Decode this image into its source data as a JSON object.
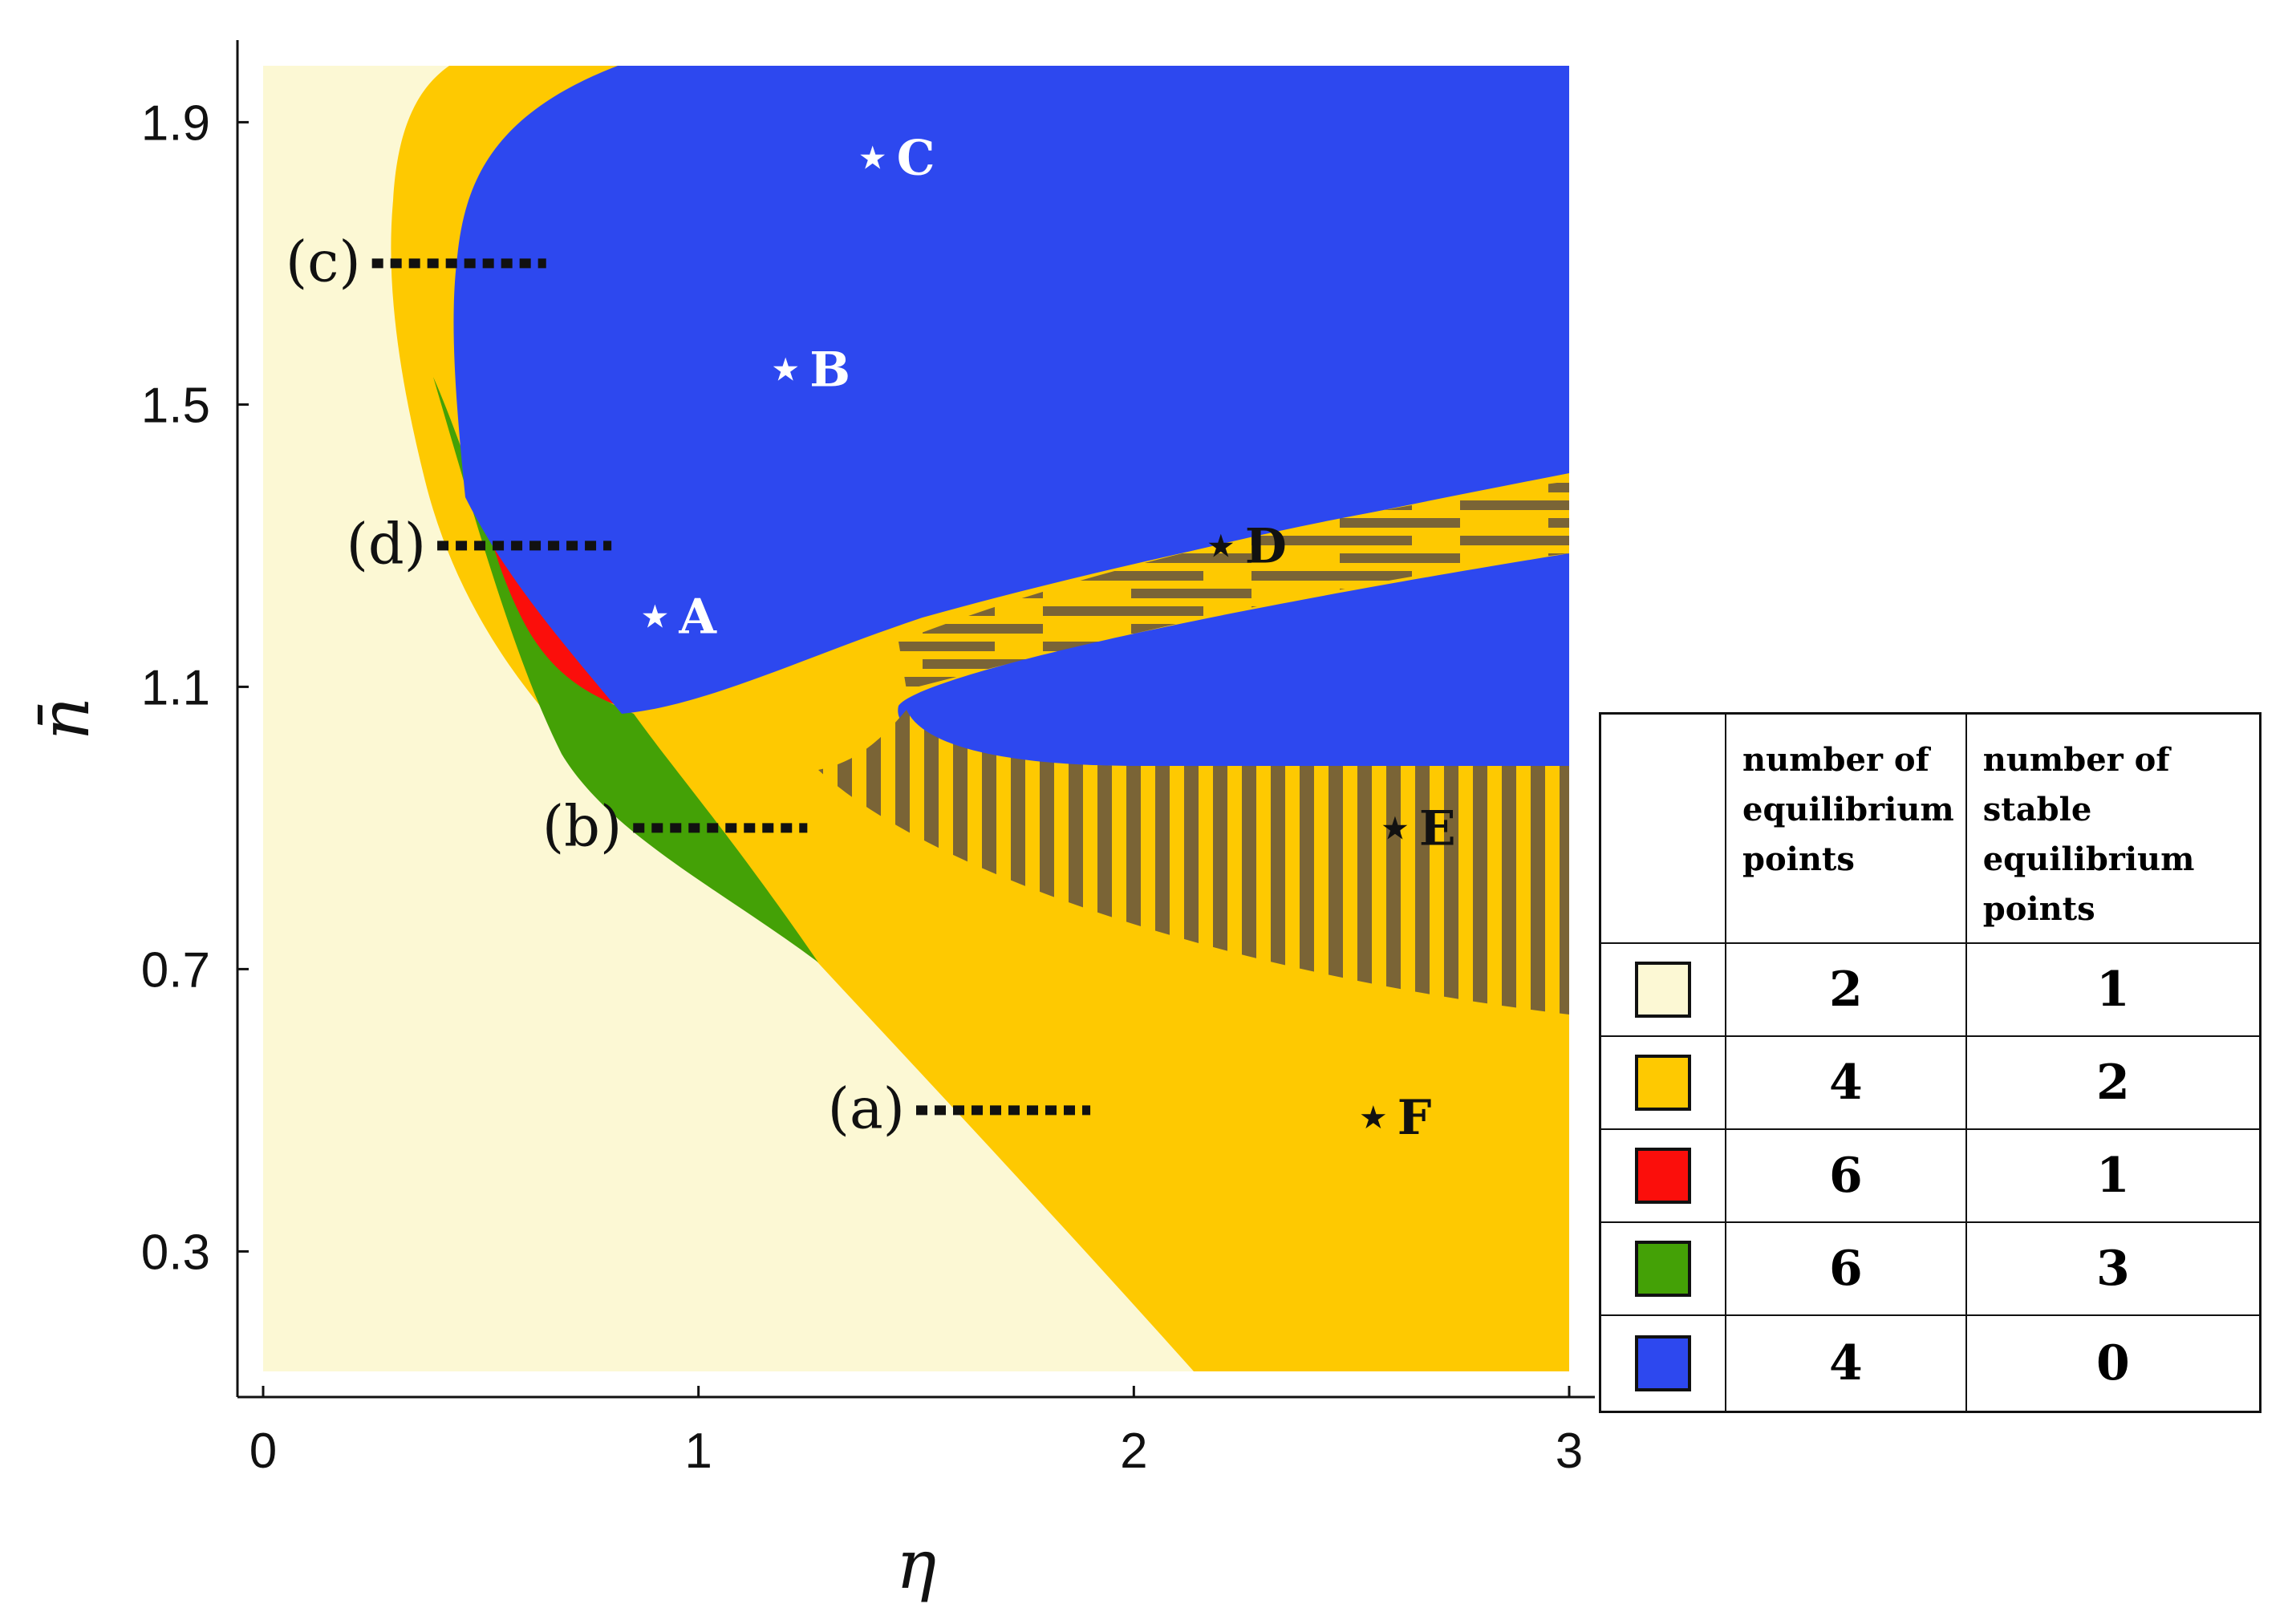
{
  "chart_data": {
    "type": "heatmap",
    "xlabel": "η",
    "ylabel": "n̄",
    "xlim": [
      0,
      3
    ],
    "ylim": [
      0.13,
      1.98
    ],
    "x_ticks": [
      "0",
      "1",
      "2",
      "3"
    ],
    "y_ticks": [
      "0.3",
      "0.7",
      "1.1",
      "1.5",
      "1.9"
    ],
    "x_tick_values": [
      0,
      1,
      2,
      3
    ],
    "y_tick_values": [
      0.3,
      0.7,
      1.1,
      1.5,
      1.9
    ],
    "regions": [
      {
        "color": "#fcf8d4",
        "equilibrium_points": "2",
        "stable_points": "1"
      },
      {
        "color": "#fec901",
        "equilibrium_points": "4",
        "stable_points": "2"
      },
      {
        "color": "#fb0e0b",
        "equilibrium_points": "6",
        "stable_points": "1"
      },
      {
        "color": "#44a106",
        "equilibrium_points": "6",
        "stable_points": "3"
      },
      {
        "color": "#2d48ef",
        "equilibrium_points": "4",
        "stable_points": "0"
      }
    ],
    "points": [
      {
        "label": "A",
        "x": 0.9,
        "y": 1.2,
        "color": "#ffffff"
      },
      {
        "label": "B",
        "x": 1.2,
        "y": 1.55,
        "color": "#ffffff"
      },
      {
        "label": "C",
        "x": 1.4,
        "y": 1.85,
        "color": "#ffffff"
      },
      {
        "label": "D",
        "x": 2.2,
        "y": 1.3,
        "color": "#111111"
      },
      {
        "label": "E",
        "x": 2.6,
        "y": 0.9,
        "color": "#111111"
      },
      {
        "label": "F",
        "x": 2.55,
        "y": 0.49,
        "color": "#111111"
      }
    ],
    "cut_lines": [
      {
        "label": "(a)",
        "y": 0.5,
        "x_from": 1.5,
        "x_to": 1.9
      },
      {
        "label": "(b)",
        "y": 0.9,
        "x_from": 0.85,
        "x_to": 1.25
      },
      {
        "label": "(c)",
        "y": 1.7,
        "x_from": 0.25,
        "x_to": 0.65
      },
      {
        "label": "(d)",
        "y": 1.3,
        "x_from": 0.4,
        "x_to": 0.8
      }
    ],
    "legend": {
      "placement": "right",
      "header_count": "number of equilibrium points",
      "header_stable": "number of stable equilibrium points"
    }
  }
}
